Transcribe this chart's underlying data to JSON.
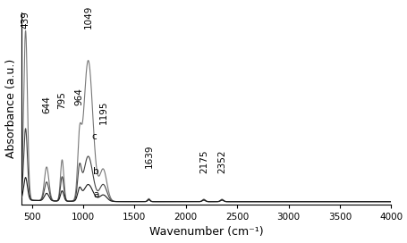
{
  "xlim": [
    400,
    4000
  ],
  "xlabel": "Wavenumber (cm⁻¹)",
  "ylabel": "Absorbance (a.u.)",
  "background_color": "#ffffff",
  "peak_labels_top": [
    {
      "x": 439,
      "text": "439"
    },
    {
      "x": 1049,
      "text": "1049"
    }
  ],
  "peak_labels_mid": [
    {
      "x": 644,
      "text": "644"
    },
    {
      "x": 795,
      "text": "795"
    },
    {
      "x": 964,
      "text": "964"
    },
    {
      "x": 1195,
      "text": "1195"
    },
    {
      "x": 1639,
      "text": "1639"
    },
    {
      "x": 2175,
      "text": "2175"
    },
    {
      "x": 2352,
      "text": "2352"
    }
  ],
  "line_color_a": "#1a1a1a",
  "line_color_b": "#444444",
  "line_color_c": "#777777",
  "xticks": [
    500,
    1000,
    1500,
    2000,
    2500,
    3000,
    3500,
    4000
  ],
  "axis_fontsize": 9,
  "tick_fontsize": 7.5,
  "label_fontsize": 7.5
}
